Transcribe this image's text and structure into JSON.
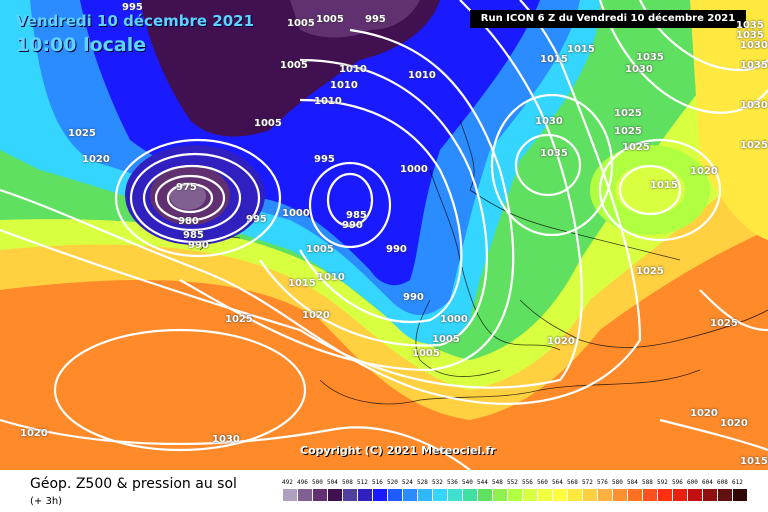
{
  "header": {
    "date": "Vendredi 10 décembre 2021",
    "local_time": "10:00 locale",
    "run": "Run ICON 6 Z du Vendredi 10 décembre 2021"
  },
  "copyright": "Copyright (C) 2021 Meteociel.fr",
  "footer": {
    "title": "Géop. Z500 & pression au sol",
    "subtitle": "(+ 3h)"
  },
  "legend": {
    "values": [
      "492",
      "496",
      "500",
      "504",
      "508",
      "512",
      "516",
      "520",
      "524",
      "528",
      "532",
      "536",
      "540",
      "544",
      "548",
      "552",
      "556",
      "560",
      "564",
      "568",
      "572",
      "576",
      "580",
      "584",
      "588",
      "592",
      "596",
      "600",
      "604",
      "608",
      "612"
    ],
    "colors": [
      "#b0a0c0",
      "#806090",
      "#603070",
      "#401050",
      "#5040a0",
      "#3020c0",
      "#1a1aff",
      "#1f5cff",
      "#2b8cff",
      "#30b8ff",
      "#34d6ff",
      "#40e0d0",
      "#40e0a0",
      "#60e060",
      "#90f050",
      "#b0ff40",
      "#d8ff40",
      "#f0ff40",
      "#ffff40",
      "#ffe840",
      "#ffd040",
      "#ffb040",
      "#ff9030",
      "#ff7020",
      "#ff5020",
      "#ff3010",
      "#e82010",
      "#c01010",
      "#901010",
      "#601010",
      "#300808"
    ]
  },
  "pressure_labels": [
    {
      "text": "995"
    },
    {
      "text": "1005"
    },
    {
      "text": "1005"
    },
    {
      "text": "995"
    },
    {
      "text": "1010"
    },
    {
      "text": "1010"
    },
    {
      "text": "1010"
    },
    {
      "text": "1010"
    },
    {
      "text": "1005"
    },
    {
      "text": "1025"
    },
    {
      "text": "1020"
    },
    {
      "text": "1005"
    },
    {
      "text": "995"
    },
    {
      "text": "1000"
    },
    {
      "text": "985"
    },
    {
      "text": "990"
    },
    {
      "text": "1000"
    },
    {
      "text": "990"
    },
    {
      "text": "995"
    },
    {
      "text": "990"
    },
    {
      "text": "1005"
    },
    {
      "text": "1010"
    },
    {
      "text": "1015"
    },
    {
      "text": "1020"
    },
    {
      "text": "990"
    },
    {
      "text": "1000"
    },
    {
      "text": "1005"
    },
    {
      "text": "1005"
    },
    {
      "text": "1025"
    },
    {
      "text": "1020"
    },
    {
      "text": "1030"
    },
    {
      "text": "1015"
    },
    {
      "text": "1015"
    },
    {
      "text": "1030"
    },
    {
      "text": "1035"
    },
    {
      "text": "1035"
    },
    {
      "text": "1030"
    },
    {
      "text": "1025"
    },
    {
      "text": "1025"
    },
    {
      "text": "1025"
    },
    {
      "text": "1015"
    },
    {
      "text": "1020"
    },
    {
      "text": "1025"
    },
    {
      "text": "1025"
    },
    {
      "text": "1020"
    },
    {
      "text": "1020"
    },
    {
      "text": "1015"
    },
    {
      "text": "1025"
    },
    {
      "text": "1035"
    },
    {
      "text": "1035"
    },
    {
      "text": "1035"
    },
    {
      "text": "1030"
    },
    {
      "text": "1030"
    },
    {
      "text": "1020"
    },
    {
      "text": "975"
    },
    {
      "text": "980"
    },
    {
      "text": "985"
    }
  ]
}
